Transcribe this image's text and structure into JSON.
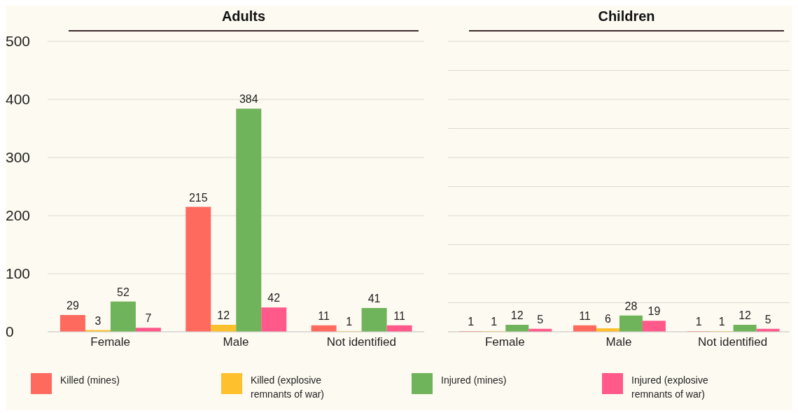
{
  "chart_data": [
    {
      "type": "bar",
      "title": "Adults",
      "categories": [
        "Female",
        "Male",
        "Not identified"
      ],
      "series": [
        {
          "name": "Killed (mines)",
          "color": "#ff6a5f",
          "values": [
            29,
            215,
            11
          ]
        },
        {
          "name": "Killed (explosive remnants of war)",
          "color": "#ffc02e",
          "values": [
            3,
            12,
            1
          ]
        },
        {
          "name": "Injured (mines)",
          "color": "#6fb35a",
          "values": [
            52,
            384,
            41
          ]
        },
        {
          "name": "Injured (explosive remnants of war)",
          "color": "#ff5a8a",
          "values": [
            7,
            42,
            11
          ]
        }
      ],
      "ylim": [
        0,
        500
      ],
      "yticks": [
        0,
        100,
        200,
        300,
        400,
        500
      ],
      "grid": "y",
      "data_labels": true,
      "legend": "bottom"
    },
    {
      "type": "bar",
      "title": "Children",
      "categories": [
        "Female",
        "Male",
        "Not identified"
      ],
      "series": [
        {
          "color": "#ff6a5f",
          "values": [
            1,
            11,
            1
          ]
        },
        {
          "color": "#ffc02e",
          "values": [
            1,
            6,
            1
          ]
        },
        {
          "color": "#6fb35a",
          "values": [
            12,
            28,
            12
          ]
        },
        {
          "color": "#ff5a8a",
          "values": [
            5,
            19,
            5
          ]
        }
      ],
      "ylim": [
        0,
        500
      ],
      "yticks": [
        0,
        50,
        100,
        150,
        200,
        250,
        300,
        350,
        400,
        450,
        500
      ],
      "grid": "y",
      "data_labels": true,
      "tick_labels": "x"
    }
  ]
}
